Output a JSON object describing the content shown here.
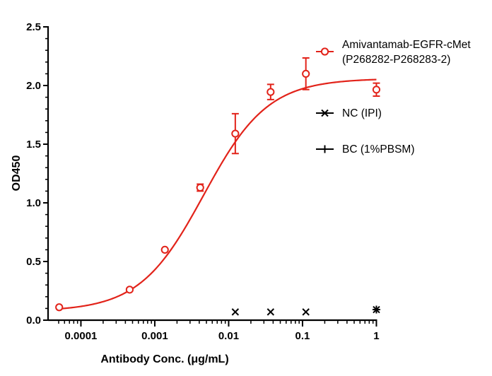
{
  "chart_data": {
    "type": "scatter",
    "xlabel": "Antibody Conc. (μg/mL)",
    "ylabel": "OD450",
    "x_scale": "log",
    "xlim": [
      5e-05,
      1
    ],
    "ylim": [
      0,
      2.5
    ],
    "x_ticks": [
      {
        "value": 0.0001,
        "label": "0.0001"
      },
      {
        "value": 0.001,
        "label": "0.001"
      },
      {
        "value": 0.01,
        "label": "0.01"
      },
      {
        "value": 0.1,
        "label": "0.1"
      },
      {
        "value": 1,
        "label": "1"
      }
    ],
    "y_ticks": [
      {
        "value": 0,
        "label": "0.0"
      },
      {
        "value": 0.5,
        "label": "0.5"
      },
      {
        "value": 1.0,
        "label": "1.0"
      },
      {
        "value": 1.5,
        "label": "1.5"
      },
      {
        "value": 2.0,
        "label": "2.0"
      },
      {
        "value": 2.5,
        "label": "2.5"
      }
    ],
    "grid": false,
    "legend_position": "right",
    "series": [
      {
        "name": "Amivantamab-EGFR-cMet (P268282-P268283-2)",
        "name_lines": [
          "Amivantamab-EGFR-cMet",
          "(P268282-P268283-2)"
        ],
        "marker": "circle",
        "color": "#e2231a",
        "fit": "4PL",
        "fit_params": {
          "bottom": 0.075,
          "top": 2.06,
          "ec50": 0.0046,
          "hill": 1.0
        },
        "points": [
          {
            "x": 5.08e-05,
            "y": 0.11,
            "err": 0
          },
          {
            "x": 0.000457,
            "y": 0.26,
            "err": 0.01
          },
          {
            "x": 0.00137,
            "y": 0.6,
            "err": 0
          },
          {
            "x": 0.00412,
            "y": 1.13,
            "err": 0.03
          },
          {
            "x": 0.0123,
            "y": 1.59,
            "err": 0.17
          },
          {
            "x": 0.037,
            "y": 1.945,
            "err": 0.065
          },
          {
            "x": 0.111,
            "y": 2.1,
            "err": 0.135
          },
          {
            "x": 1,
            "y": 1.965,
            "err": 0.055
          }
        ]
      },
      {
        "name": "NC (IPI)",
        "name_lines": [
          "NC (IPI)"
        ],
        "marker": "x",
        "color": "#000000",
        "points": [
          {
            "x": 0.0123,
            "y": 0.07
          },
          {
            "x": 0.037,
            "y": 0.07
          },
          {
            "x": 0.111,
            "y": 0.07
          },
          {
            "x": 1,
            "y": 0.09
          }
        ]
      },
      {
        "name": "BC (1%PBSM)",
        "name_lines": [
          "BC (1%PBSM)"
        ],
        "marker": "plus",
        "color": "#000000",
        "points": [
          {
            "x": 1,
            "y": 0.09
          }
        ]
      }
    ]
  }
}
